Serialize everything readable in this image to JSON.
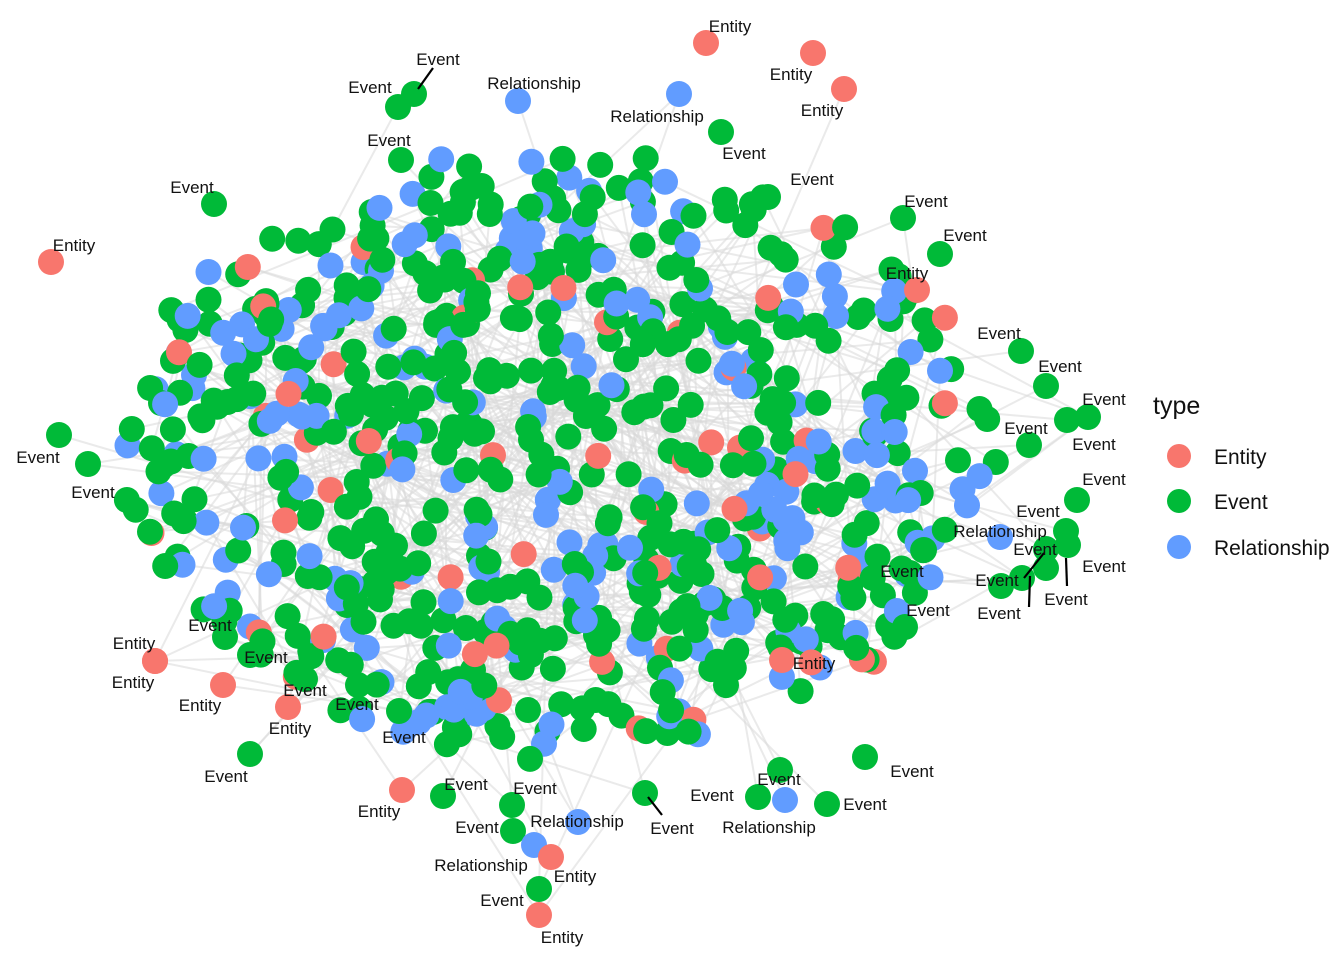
{
  "legend": {
    "title": "type",
    "items": [
      {
        "label": "Entity",
        "color": "#F8766D"
      },
      {
        "label": "Event",
        "color": "#00BA38"
      },
      {
        "label": "Relationship",
        "color": "#619CFF"
      }
    ]
  },
  "edge_color": "#d9d9d9",
  "labels": {
    "entity": "Entity",
    "event": "Event",
    "relationship": "Relationship"
  }
}
